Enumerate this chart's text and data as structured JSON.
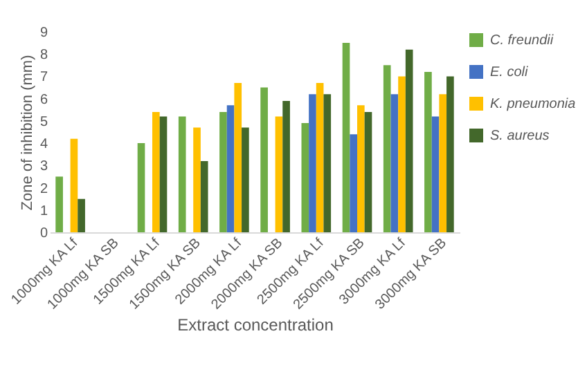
{
  "chart_data": {
    "type": "bar",
    "xlabel": "Extract concentration",
    "ylabel": "Zone of inhibition (mm)",
    "categories": [
      "1000mg KA Lf",
      "1000mg KA SB",
      "1500mg KA Lf",
      "1500mg KA SB",
      "2000mg KA Lf",
      "2000mg KA SB",
      "2500mg KA Lf",
      "2500mg KA SB",
      "3000mg KA Lf",
      "3000mg KA SB"
    ],
    "series": [
      {
        "name": "C. freundii",
        "color": "#70ad47",
        "values": [
          2.5,
          null,
          4.0,
          5.2,
          5.4,
          6.5,
          4.9,
          8.5,
          7.5,
          7.2
        ]
      },
      {
        "name": "E. coli",
        "color": "#4472c4",
        "values": [
          null,
          null,
          null,
          null,
          5.7,
          null,
          6.2,
          4.4,
          6.2,
          5.2
        ]
      },
      {
        "name": "K. pneumonia",
        "color": "#ffc000",
        "values": [
          4.2,
          null,
          5.4,
          4.7,
          6.7,
          5.2,
          6.7,
          5.7,
          7.0,
          6.2
        ]
      },
      {
        "name": "S. aureus",
        "color": "#43682b",
        "values": [
          1.5,
          null,
          5.2,
          3.2,
          4.7,
          5.9,
          6.2,
          5.4,
          8.2,
          7.0
        ]
      }
    ],
    "ylim": [
      0,
      9
    ],
    "yticks": [
      0,
      1,
      2,
      3,
      4,
      5,
      6,
      7,
      8,
      9
    ],
    "grid": false,
    "legend": "right"
  }
}
